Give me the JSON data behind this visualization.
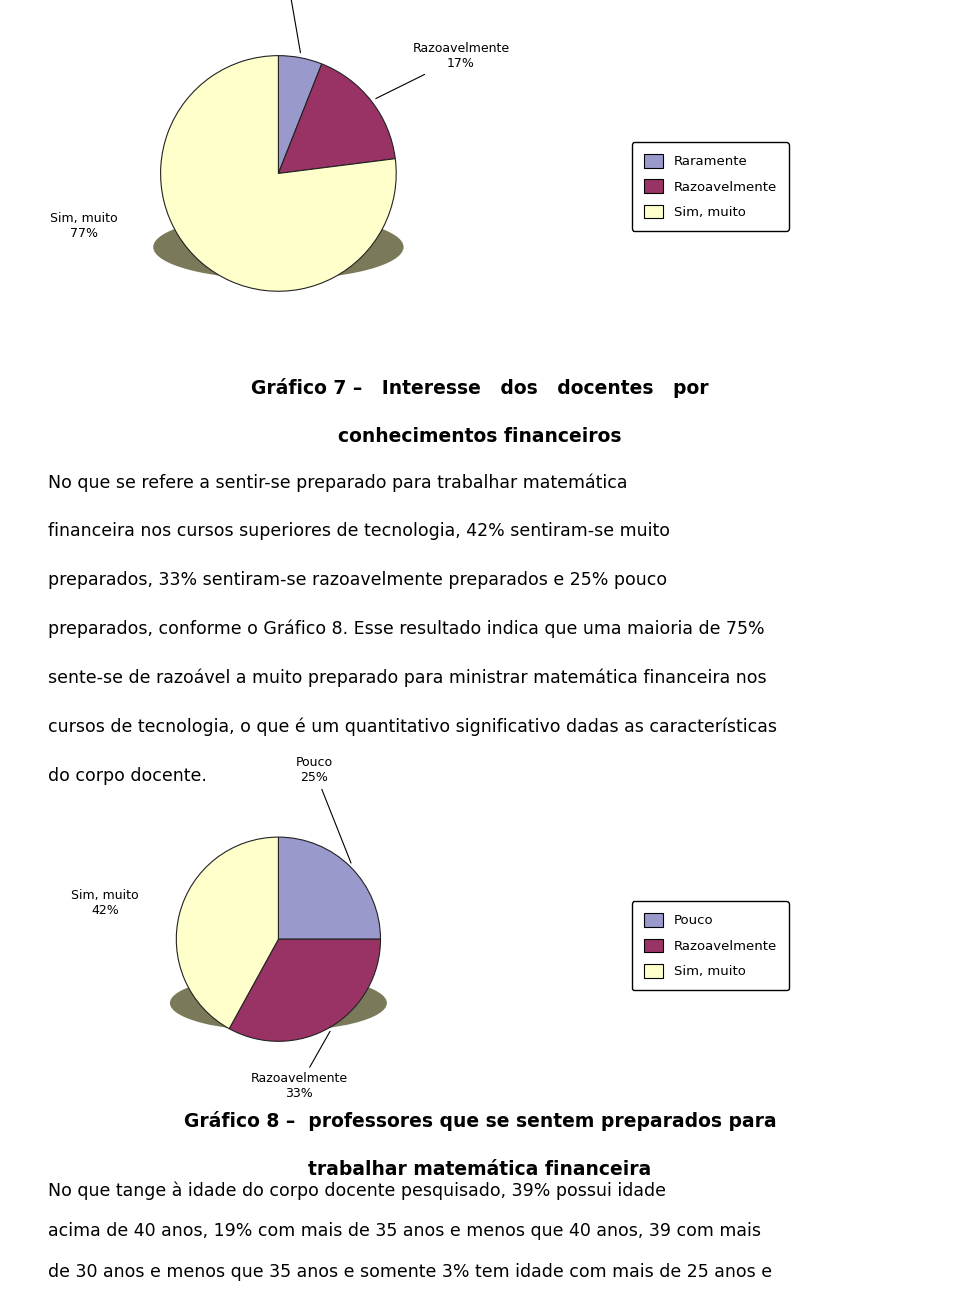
{
  "pie1": {
    "labels": [
      "Raramente",
      "Razoavelmente",
      "Sim, muito"
    ],
    "values": [
      6,
      17,
      77
    ],
    "colors": [
      "#9999CC",
      "#993366",
      "#FFFFCC"
    ],
    "shadow_color": "#7a7a5a",
    "legend_labels": [
      "Raramente",
      "Razoavelmente",
      "Sim, muito"
    ]
  },
  "pie2": {
    "labels": [
      "Pouco",
      "Razoavelmente",
      "Sim, muito"
    ],
    "values": [
      25,
      33,
      42
    ],
    "colors": [
      "#9999CC",
      "#993366",
      "#FFFFCC"
    ],
    "shadow_color": "#7a7a5a",
    "legend_labels": [
      "Pouco",
      "Razoavelmente",
      "Sim, muito"
    ]
  },
  "caption1_line1": "Gráfico 7 –   Interesse   dos   docentes   por",
  "caption1_line2": "conhecimentos financeiros",
  "paragraph1_lines": [
    "No que se refere a sentir-se preparado para trabalhar matemática",
    "financeira nos cursos superiores de tecnologia, 42% sentiram-se muito",
    "preparados, 33% sentiram-se razoavelmente preparados e 25% pouco",
    "preparados, conforme o Gráfico 8. Esse resultado indica que uma maioria de 75%",
    "sente-se de razoável a muito preparado para ministrar matemática financeira nos",
    "cursos de tecnologia, o que é um quantitativo significativo dadas as características",
    "do corpo docente."
  ],
  "caption2_line1": "Gráfico 8 –  professores que se sentem preparados para",
  "caption2_line2": "trabalhar matemática financeira",
  "paragraph2_lines": [
    "No que tange à idade do corpo docente pesquisado, 39% possui idade",
    "acima de 40 anos, 19% com mais de 35 anos e menos que 40 anos, 39 com mais",
    "de 30 anos e menos que 35 anos e somente 3% tem idade com mais de 25 anos e"
  ],
  "bg_color": "#ffffff",
  "text_color": "#000000",
  "font_size_body": 12.5,
  "font_size_caption": 13.5,
  "font_size_pie_label": 9
}
